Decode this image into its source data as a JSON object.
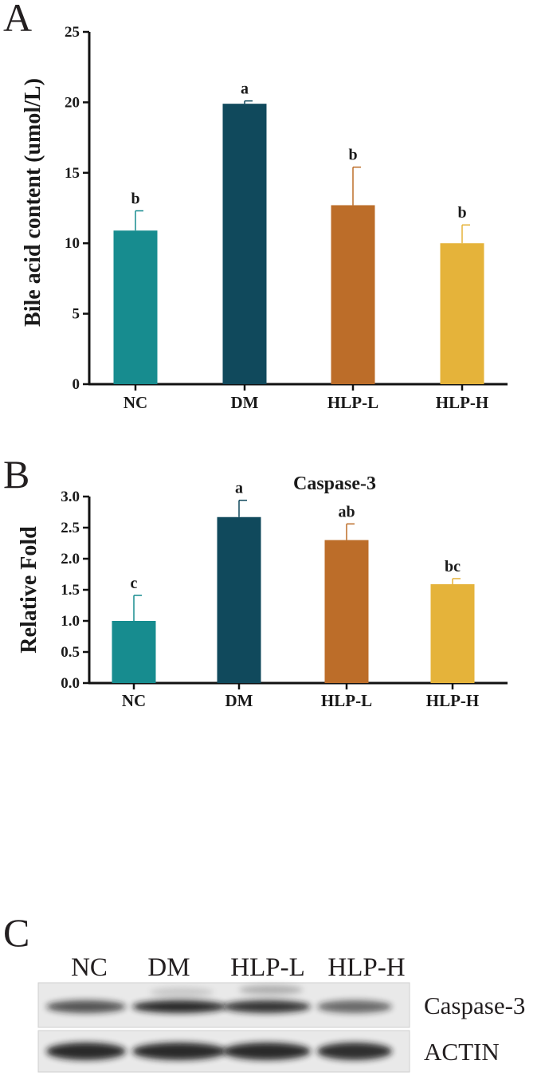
{
  "chart_data": [
    {
      "type": "bar",
      "panel": "A",
      "title": "",
      "xlabel": "",
      "ylabel": "Bile acid content (umol/L)",
      "ylim": [
        0,
        25
      ],
      "yticks": [
        "0",
        "5",
        "10",
        "15",
        "20",
        "25"
      ],
      "categories": [
        "NC",
        "DM",
        "HLP-L",
        "HLP-H"
      ],
      "values": [
        10.9,
        19.9,
        12.7,
        10.0
      ],
      "errors": [
        1.4,
        0.2,
        2.7,
        1.3
      ],
      "labels": [
        "b",
        "a",
        "b",
        "b"
      ],
      "colors": [
        "#178c8f",
        "#10495c",
        "#bc6d29",
        "#e5b33a"
      ]
    },
    {
      "type": "bar",
      "panel": "B",
      "title": "Caspase-3",
      "xlabel": "",
      "ylabel": "Relative Fold",
      "ylim": [
        0,
        3.0
      ],
      "yticks": [
        "0.0",
        "0.5",
        "1.0",
        "1.5",
        "2.0",
        "2.5",
        "3.0"
      ],
      "categories": [
        "NC",
        "DM",
        "HLP-L",
        "HLP-H"
      ],
      "values": [
        1.0,
        2.67,
        2.3,
        1.59
      ],
      "errors": [
        0.41,
        0.27,
        0.26,
        0.09
      ],
      "labels": [
        "c",
        "a",
        "ab",
        "bc"
      ],
      "colors": [
        "#178c8f",
        "#10495c",
        "#bc6d29",
        "#e5b33a"
      ]
    }
  ],
  "blot": {
    "panel": "C",
    "lanes": [
      "NC",
      "DM",
      "HLP-L",
      "HLP-H"
    ],
    "rows": [
      {
        "label": "Caspase-3",
        "intensity": [
          0.7,
          0.9,
          0.85,
          0.6
        ]
      },
      {
        "label": "ACTIN",
        "intensity": [
          0.9,
          0.9,
          0.9,
          0.88
        ]
      }
    ]
  }
}
